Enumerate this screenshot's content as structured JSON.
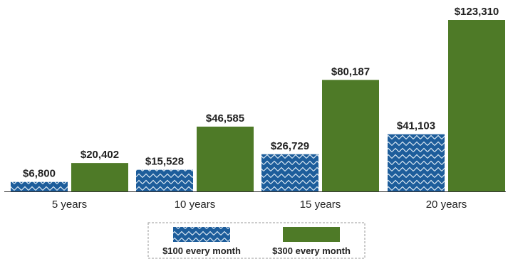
{
  "chart_data": {
    "type": "bar",
    "categories": [
      "5 years",
      "10 years",
      "15 years",
      "20 years"
    ],
    "series": [
      {
        "name": "$100 every month",
        "values": [
          6800,
          15528,
          26729,
          41103
        ],
        "labels": [
          "$6,800",
          "$15,528",
          "$26,729",
          "$41,103"
        ],
        "color": "#1d5d9b",
        "pattern": "zigzag"
      },
      {
        "name": "$300 every month",
        "values": [
          20402,
          46585,
          80187,
          123310
        ],
        "labels": [
          "$20,402",
          "$46,585",
          "$80,187",
          "$123,310"
        ],
        "color": "#4e7a27",
        "pattern": "solid"
      }
    ],
    "title": "",
    "xlabel": "",
    "ylabel": "",
    "ylim": [
      0,
      123310
    ],
    "grid": false,
    "legend_position": "bottom-center"
  }
}
